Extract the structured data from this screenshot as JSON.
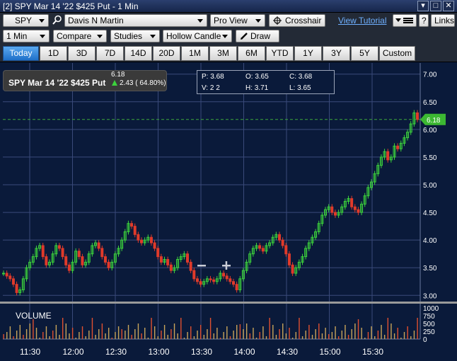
{
  "window": {
    "title": "[2] SPY Mar 14 '22 $425 Put - 1 Min",
    "buttons": [
      "▾",
      "□",
      "✕"
    ]
  },
  "toolbar": {
    "symbol": "SPY",
    "account": "Davis N Martin",
    "view": "Pro View",
    "crosshair_label": "Crosshair",
    "tutorial_link": "View Tutorial",
    "help_label": "?",
    "links_label": "Links"
  },
  "toolbar2": {
    "interval": "1 Min",
    "compare": "Compare",
    "studies": "Studies",
    "candle_style": "Hollow Candle",
    "draw_label": "Draw"
  },
  "ranges": [
    {
      "label": "Today",
      "active": true
    },
    {
      "label": "1D"
    },
    {
      "label": "3D"
    },
    {
      "label": "7D"
    },
    {
      "label": "14D"
    },
    {
      "label": "20D"
    },
    {
      "label": "1M"
    },
    {
      "label": "3M"
    },
    {
      "label": "6M"
    },
    {
      "label": "YTD"
    },
    {
      "label": "1Y"
    },
    {
      "label": "3Y"
    },
    {
      "label": "5Y"
    },
    {
      "label": "Custom"
    }
  ],
  "quote": {
    "name": "SPY Mar 14 '22 $425 Put",
    "last": "6.18",
    "change": "2.43 ( 64.80%)"
  },
  "ohlc": {
    "p": "P: 3.68",
    "o": "O: 3.65",
    "c": "C: 3.68",
    "v": "V: 2 2",
    "h": "H: 3.71",
    "l": "L: 3.65"
  },
  "colors": {
    "up": "#3cd23c",
    "down": "#e03a2a",
    "accent": "#2a8fe6",
    "background": "#0a1a3a",
    "grid": "#3a4a7a"
  },
  "chart_data": {
    "type": "candlestick",
    "x_ticks": [
      "11:30",
      "12:00",
      "12:30",
      "13:00",
      "13:30",
      "14:00",
      "14:30",
      "15:00",
      "15:30"
    ],
    "y_ticks": [
      "7.00",
      "6.50",
      "6.00",
      "5.50",
      "5.00",
      "4.50",
      "4.00",
      "3.50",
      "3.00"
    ],
    "ylim": [
      2.85,
      7.15
    ],
    "last_price_label": "6.18",
    "volume_label": "VOLUME",
    "volume_ticks": [
      "1000",
      "750",
      "500",
      "250",
      "0"
    ],
    "close_series": [
      3.4,
      3.35,
      3.3,
      3.2,
      3.05,
      3.1,
      3.3,
      3.5,
      3.6,
      3.7,
      3.85,
      3.9,
      3.7,
      3.55,
      3.6,
      3.75,
      3.9,
      3.85,
      3.7,
      3.55,
      3.45,
      3.6,
      3.8,
      3.7,
      3.55,
      3.6,
      3.75,
      3.9,
      3.95,
      3.85,
      3.7,
      3.6,
      3.5,
      3.6,
      3.75,
      3.85,
      4.0,
      4.15,
      4.3,
      4.25,
      4.1,
      4.0,
      3.95,
      4.0,
      4.05,
      3.95,
      3.85,
      3.7,
      3.6,
      3.65,
      3.55,
      3.45,
      3.5,
      3.65,
      3.7,
      3.75,
      3.6,
      3.45,
      3.3,
      3.25,
      3.2,
      3.25,
      3.3,
      3.28,
      3.25,
      3.3,
      3.4,
      3.35,
      3.3,
      3.25,
      3.2,
      3.1,
      3.3,
      3.45,
      3.6,
      3.75,
      3.85,
      3.9,
      3.85,
      3.8,
      3.9,
      3.95,
      4.05,
      4.1,
      4.0,
      3.9,
      3.75,
      3.55,
      3.4,
      3.5,
      3.6,
      3.7,
      3.85,
      3.95,
      4.05,
      4.15,
      4.3,
      4.45,
      4.55,
      4.6,
      4.5,
      4.45,
      4.5,
      4.6,
      4.7,
      4.75,
      4.6,
      4.55,
      4.5,
      4.65,
      4.8,
      4.95,
      5.05,
      5.2,
      5.35,
      5.5,
      5.6,
      5.45,
      5.5,
      5.7,
      5.65,
      5.75,
      5.85,
      5.95,
      6.1,
      6.3,
      6.18
    ]
  }
}
